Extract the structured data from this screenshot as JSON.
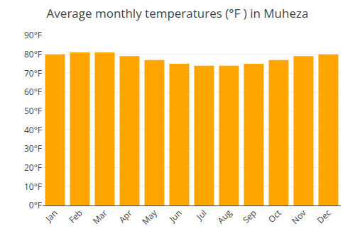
{
  "chart_data": {
    "type": "bar",
    "title": "Average monthly temperatures (°F ) in Muheza",
    "categories": [
      "Jan",
      "Feb",
      "Mar",
      "Apr",
      "May",
      "Jun",
      "Jul",
      "Aug",
      "Sep",
      "Oct",
      "Nov",
      "Dec"
    ],
    "values": [
      80.0,
      81.0,
      81.0,
      79.0,
      77.0,
      75.0,
      74.0,
      74.0,
      75.0,
      77.0,
      79.0,
      80.0
    ],
    "color": "#FFA500",
    "ylim": [
      0,
      90
    ],
    "yticks": [
      {
        "value": 0,
        "label": "0°F"
      },
      {
        "value": 10,
        "label": "10°F"
      },
      {
        "value": 20,
        "label": "20°F"
      },
      {
        "value": 30,
        "label": "30°F"
      },
      {
        "value": 40,
        "label": "40°F"
      },
      {
        "value": 50,
        "label": "50°F"
      },
      {
        "value": 60,
        "label": "60°F"
      },
      {
        "value": 70,
        "label": "70°F"
      },
      {
        "value": 80,
        "label": "80°F"
      },
      {
        "value": 90,
        "label": "90°F"
      }
    ],
    "grid": true
  }
}
